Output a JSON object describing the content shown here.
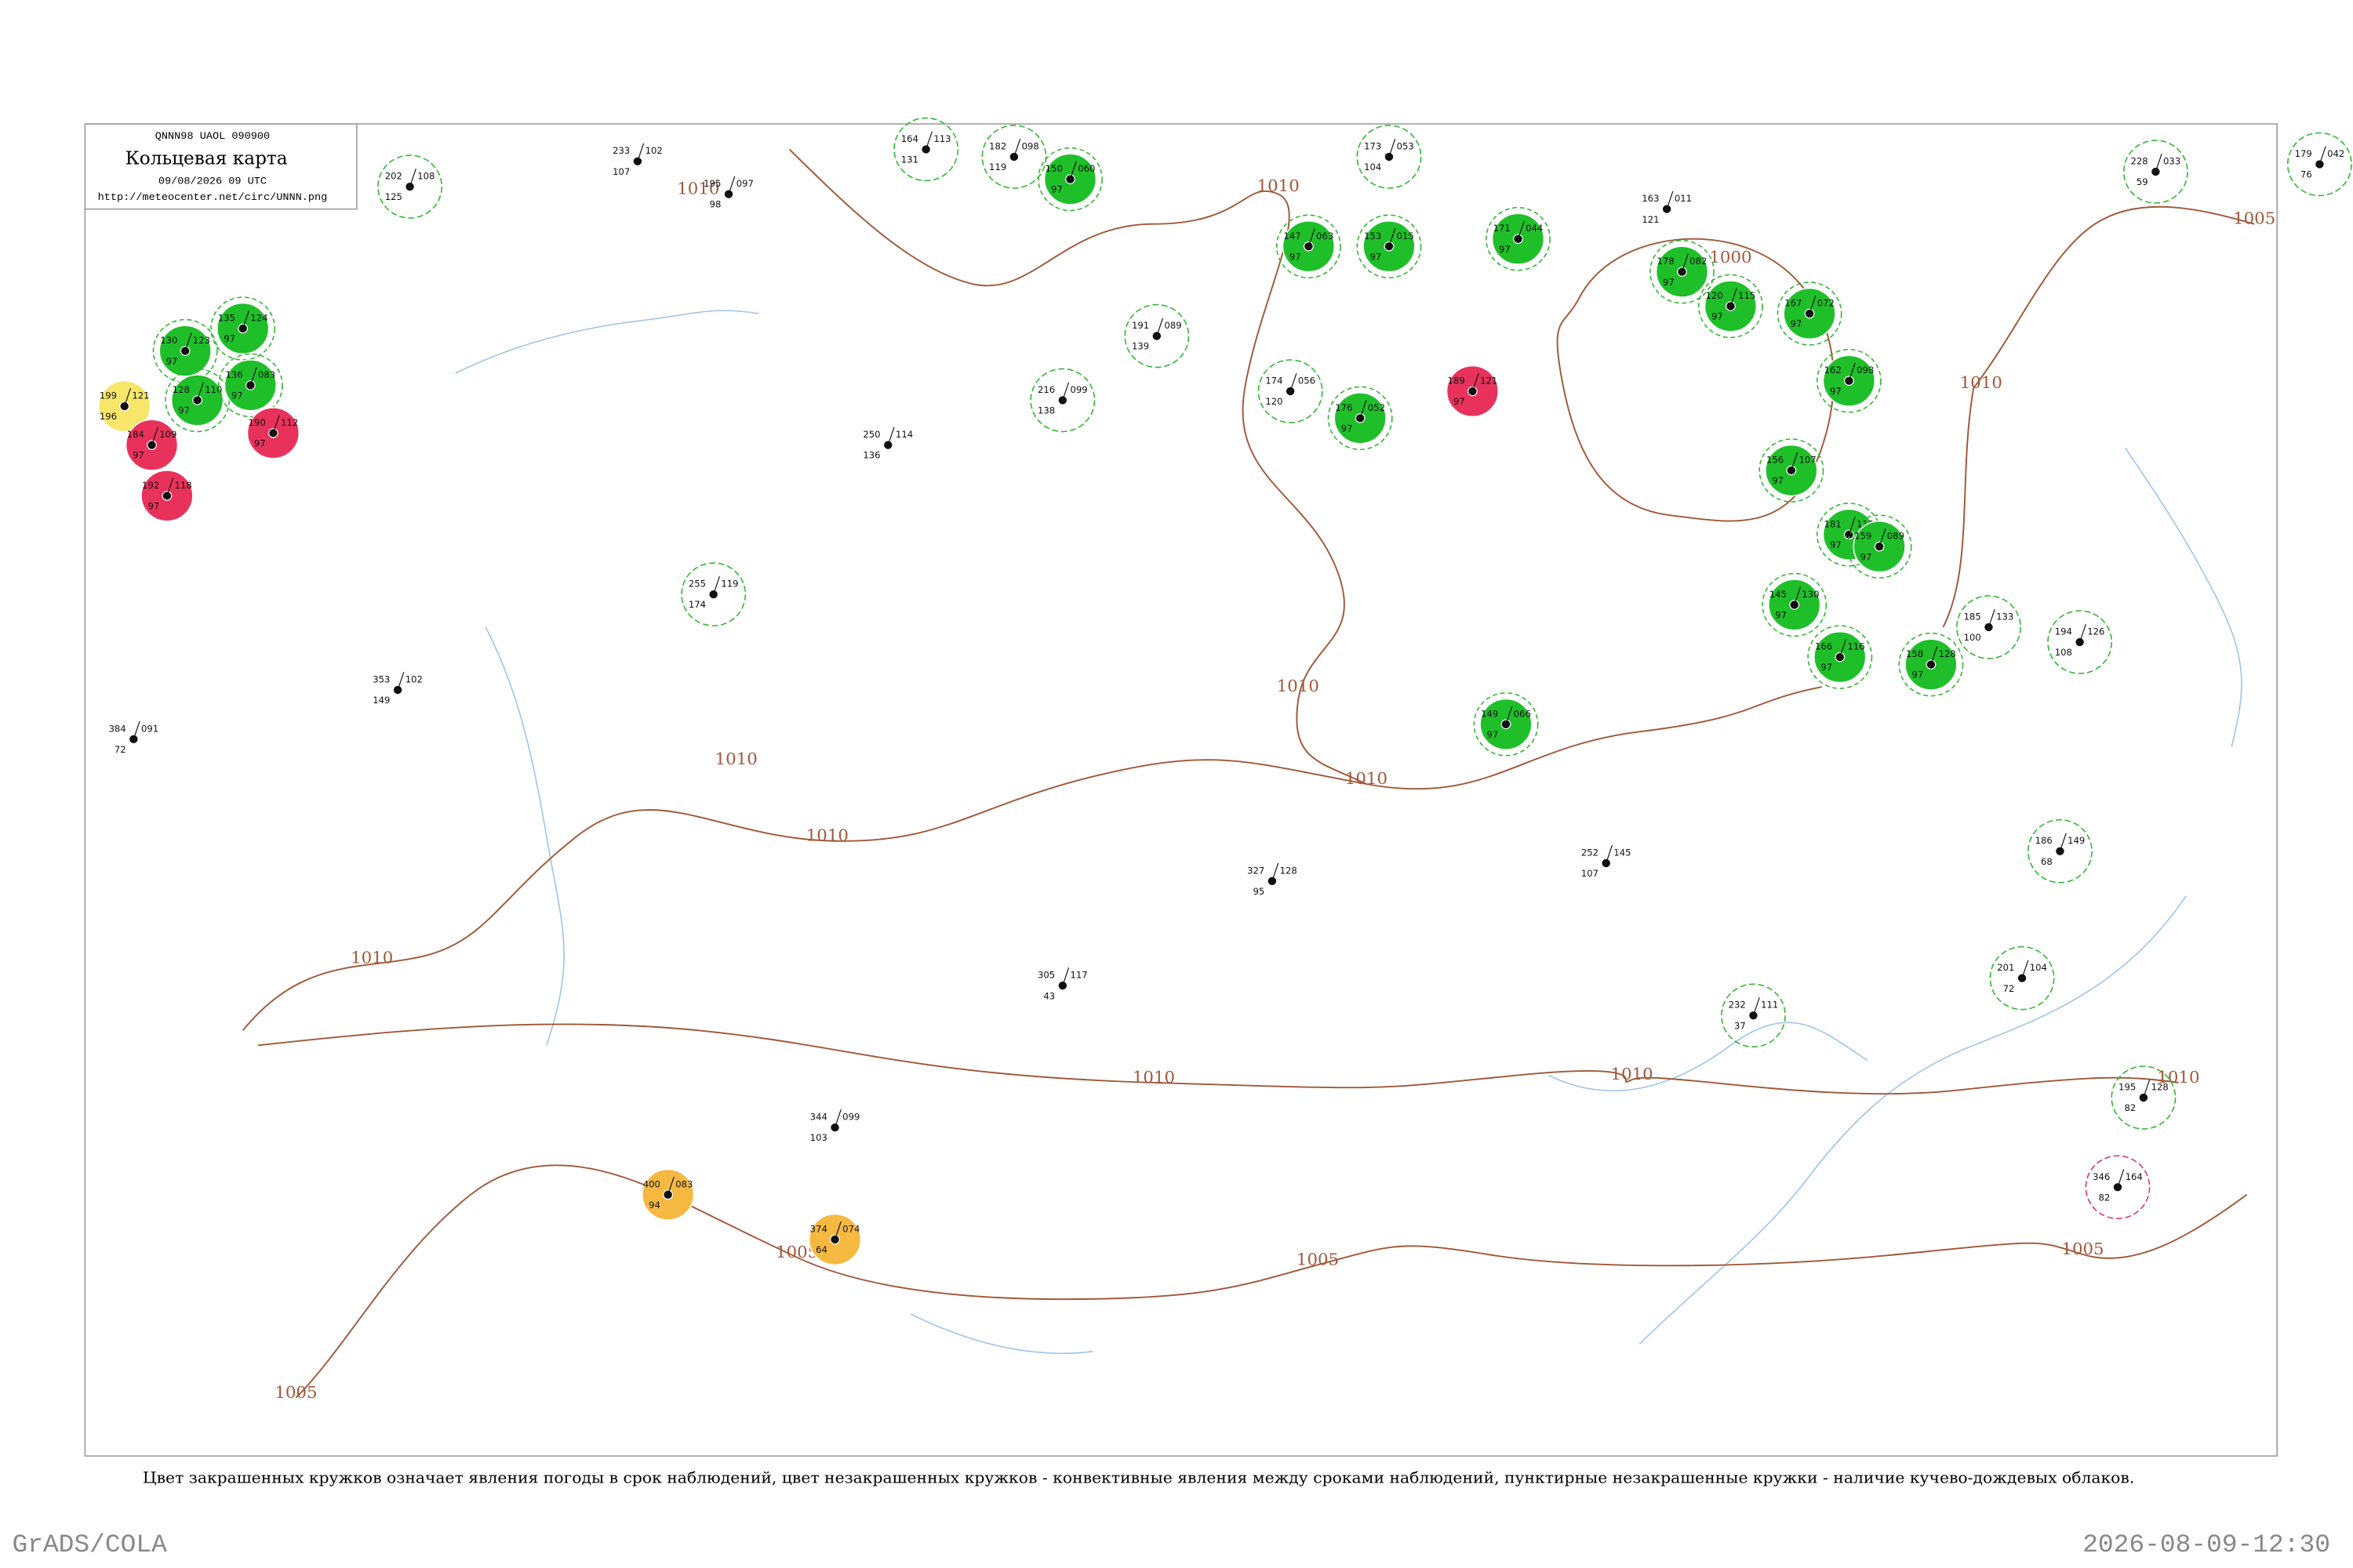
{
  "header": {
    "code": "QNNN98 UAOL 090900",
    "title": "Кольцевая карта",
    "date": "09/08/2026 09 UTC",
    "url": "http://meteocenter.net/circ/UNNN.png"
  },
  "caption": "Цвет закрашенных кружков означает явления погоды в срок наблюдений, цвет незакрашенных кружков - конвективные явления между сроками наблюдений, пунктирные незакрашенные кружки - наличие кучево-дождевых облаков.",
  "footer": {
    "left": "GrADS/COLA",
    "right": "2026-08-09-12:30"
  },
  "isobar_labels": [
    "1010",
    "1010",
    "1010",
    "1010",
    "1010",
    "1010",
    "1010",
    "1010",
    "1010",
    "1010",
    "1010",
    "1005",
    "1005",
    "1005",
    "1005",
    "1005",
    "1000"
  ],
  "stations": [
    {
      "tl": "202",
      "tr": "108",
      "bl": "125",
      "fill": null,
      "ring": "#2db52d"
    },
    {
      "tl": "233",
      "tr": "102",
      "bl": "107",
      "fill": null,
      "ring": null
    },
    {
      "tl": "195",
      "tr": "097",
      "bl": "98",
      "fill": null,
      "ring": null
    },
    {
      "tl": "164",
      "tr": "113",
      "bl": "131",
      "fill": null,
      "ring": "#2db52d"
    },
    {
      "tl": "182",
      "tr": "098",
      "bl": "119",
      "fill": null,
      "ring": "#2db52d"
    },
    {
      "tl": "173",
      "tr": "053",
      "bl": "104",
      "fill": null,
      "ring": "#2db52d"
    },
    {
      "tl": "228",
      "tr": "033",
      "bl": "59",
      "fill": null,
      "ring": "#2db52d"
    },
    {
      "tl": "179",
      "tr": "042",
      "bl": "76",
      "fill": null,
      "ring": "#2db52d"
    },
    {
      "tl": "163",
      "tr": "011",
      "bl": "121",
      "fill": null,
      "ring": null
    },
    {
      "tl": "174",
      "tr": "056",
      "bl": "120",
      "fill": null,
      "ring": "#2db52d"
    },
    {
      "tl": "191",
      "tr": "089",
      "bl": "139",
      "fill": null,
      "ring": "#2db52d"
    },
    {
      "tl": "216",
      "tr": "099",
      "bl": "138",
      "fill": null,
      "ring": "#2db52d"
    },
    {
      "tl": "199",
      "tr": "121",
      "bl": "196",
      "fill": "#f7e66a",
      "ring": null
    },
    {
      "tl": "400",
      "tr": "083",
      "bl": "94",
      "fill": "#f5b942",
      "ring": null
    },
    {
      "tl": "374",
      "tr": "074",
      "bl": "64",
      "fill": "#f5b942",
      "ring": null
    },
    {
      "tl": "346",
      "tr": "164",
      "bl": "82",
      "fill": null,
      "ring": "#d8336b"
    },
    {
      "tl": "232",
      "tr": "111",
      "bl": "37",
      "fill": null,
      "ring": "#2db52d"
    },
    {
      "tl": "186",
      "tr": "149",
      "bl": "68",
      "fill": null,
      "ring": "#2db52d"
    },
    {
      "tl": "201",
      "tr": "104",
      "bl": "72",
      "fill": null,
      "ring": "#2db52d"
    },
    {
      "tl": "195",
      "tr": "128",
      "bl": "82",
      "fill": null,
      "ring": "#2db52d"
    },
    {
      "tl": "194",
      "tr": "126",
      "bl": "108",
      "fill": null,
      "ring": "#2db52d"
    },
    {
      "tl": "185",
      "tr": "133",
      "bl": "100",
      "fill": null,
      "ring": "#2db52d"
    },
    {
      "tl": "384",
      "tr": "091",
      "bl": "72",
      "fill": null,
      "ring": null
    },
    {
      "tl": "353",
      "tr": "102",
      "bl": "149",
      "fill": null,
      "ring": null
    },
    {
      "tl": "327",
      "tr": "128",
      "bl": "95",
      "fill": null,
      "ring": null
    },
    {
      "tl": "252",
      "tr": "145",
      "bl": "107",
      "fill": null,
      "ring": null
    },
    {
      "tl": "305",
      "tr": "117",
      "bl": "43",
      "fill": null,
      "ring": null
    },
    {
      "tl": "344",
      "tr": "099",
      "bl": "103",
      "fill": null,
      "ring": null
    },
    {
      "tl": "250",
      "tr": "114",
      "bl": "136",
      "fill": null,
      "ring": null
    },
    {
      "tl": "255",
      "tr": "119",
      "bl": "174",
      "fill": null,
      "ring": "#2db52d"
    },
    {
      "tl": "130",
      "tr": "123",
      "bl": "97",
      "fill": "#1fbf2a",
      "ring": "#2db52d"
    },
    {
      "tl": "135",
      "tr": "124",
      "bl": "97",
      "fill": "#1fbf2a",
      "ring": "#2db52d"
    },
    {
      "tl": "128",
      "tr": "110",
      "bl": "97",
      "fill": "#1fbf2a",
      "ring": "#2db52d"
    },
    {
      "tl": "136",
      "tr": "083",
      "bl": "97",
      "fill": "#1fbf2a",
      "ring": "#2db52d"
    },
    {
      "tl": "150",
      "tr": "060",
      "bl": "97",
      "fill": "#1fbf2a",
      "ring": "#2db52d"
    },
    {
      "tl": "147",
      "tr": "063",
      "bl": "97",
      "fill": "#1fbf2a",
      "ring": "#2db52d"
    },
    {
      "tl": "153",
      "tr": "015",
      "bl": "97",
      "fill": "#1fbf2a",
      "ring": "#2db52d"
    },
    {
      "tl": "171",
      "tr": "044",
      "bl": "97",
      "fill": "#1fbf2a",
      "ring": "#2db52d"
    },
    {
      "tl": "178",
      "tr": "082",
      "bl": "97",
      "fill": "#1fbf2a",
      "ring": "#2db52d"
    },
    {
      "tl": "120",
      "tr": "115",
      "bl": "97",
      "fill": "#1fbf2a",
      "ring": "#2db52d"
    },
    {
      "tl": "167",
      "tr": "072",
      "bl": "97",
      "fill": "#1fbf2a",
      "ring": "#2db52d"
    },
    {
      "tl": "162",
      "tr": "098",
      "bl": "97",
      "fill": "#1fbf2a",
      "ring": "#2db52d"
    },
    {
      "tl": "156",
      "tr": "107",
      "bl": "97",
      "fill": "#1fbf2a",
      "ring": "#2db52d"
    },
    {
      "tl": "181",
      "tr": "113",
      "bl": "97",
      "fill": "#1fbf2a",
      "ring": "#2db52d"
    },
    {
      "tl": "159",
      "tr": "089",
      "bl": "97",
      "fill": "#1fbf2a",
      "ring": "#2db52d"
    },
    {
      "tl": "145",
      "tr": "130",
      "bl": "97",
      "fill": "#1fbf2a",
      "ring": "#2db52d"
    },
    {
      "tl": "166",
      "tr": "116",
      "bl": "97",
      "fill": "#1fbf2a",
      "ring": "#2db52d"
    },
    {
      "tl": "158",
      "tr": "128",
      "bl": "97",
      "fill": "#1fbf2a",
      "ring": "#2db52d"
    },
    {
      "tl": "149",
      "tr": "066",
      "bl": "97",
      "fill": "#1fbf2a",
      "ring": "#2db52d"
    },
    {
      "tl": "176",
      "tr": "052",
      "bl": "97",
      "fill": "#1fbf2a",
      "ring": "#2db52d"
    },
    {
      "tl": "189",
      "tr": "121",
      "bl": "97",
      "fill": "#e8325c",
      "ring": null
    },
    {
      "tl": "184",
      "tr": "109",
      "bl": "97",
      "fill": "#e8325c",
      "ring": null
    },
    {
      "tl": "190",
      "tr": "112",
      "bl": "97",
      "fill": "#e8325c",
      "ring": null
    },
    {
      "tl": "192",
      "tr": "118",
      "bl": "97",
      "fill": "#e8325c",
      "ring": null
    }
  ]
}
